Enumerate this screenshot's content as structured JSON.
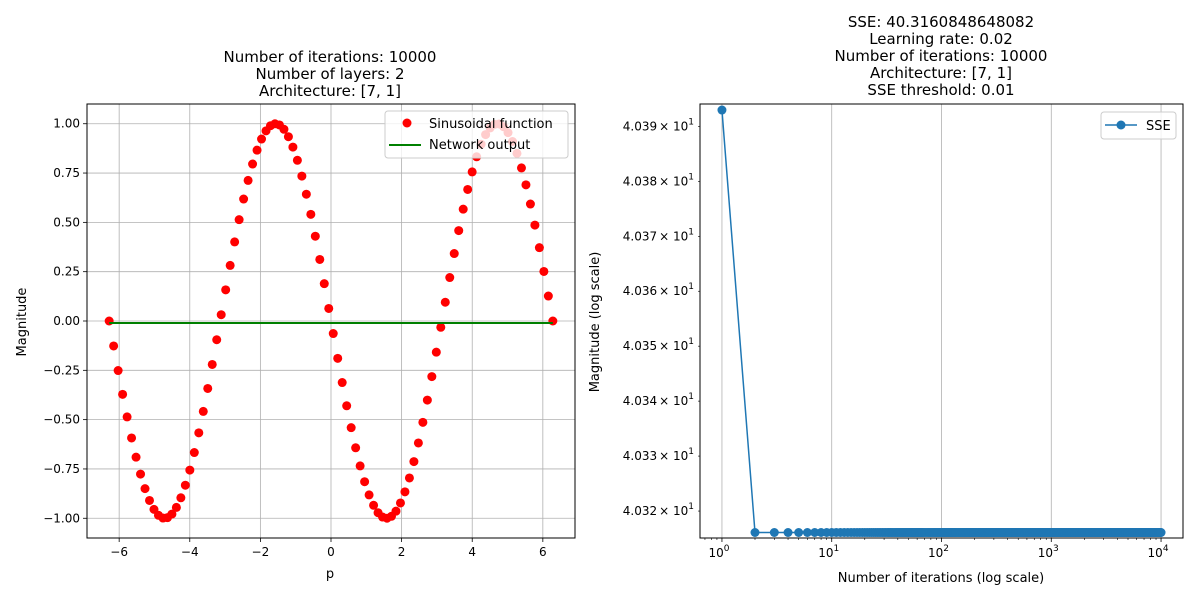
{
  "chart_data": [
    {
      "type": "scatter",
      "title_lines": [
        "Number of iterations: 10000",
        "Number of layers: 2",
        "Architecture: [7, 1]"
      ],
      "xlabel": "p",
      "ylabel": "Magnitude",
      "xlim": [
        -6.911,
        6.911
      ],
      "ylim": [
        -1.1,
        1.1
      ],
      "x_ticks": [
        -6,
        -4,
        -2,
        0,
        2,
        4,
        6
      ],
      "x_tick_labels": [
        "−6",
        "−4",
        "−2",
        "0",
        "2",
        "4",
        "6"
      ],
      "y_ticks": [
        -1.0,
        -0.75,
        -0.5,
        -0.25,
        0.0,
        0.25,
        0.5,
        0.75,
        1.0
      ],
      "y_tick_labels": [
        "−1.00",
        "−0.75",
        "−0.50",
        "−0.25",
        "0.00",
        "0.25",
        "0.50",
        "0.75",
        "1.00"
      ],
      "grid": true,
      "legend_position": "upper right",
      "series": [
        {
          "name": "Sinusoidal function",
          "kind": "scatter",
          "color": "#ff0000",
          "x_range": [
            -6.2832,
            6.2832
          ],
          "n_points": 100,
          "function": "-sin(x)"
        },
        {
          "name": "Network output",
          "kind": "line",
          "color": "#008000",
          "x": [
            -6.2832,
            6.2832
          ],
          "y": [
            -0.01,
            -0.01
          ]
        }
      ]
    },
    {
      "type": "line",
      "title_lines": [
        "SSE: 40.3160848648082",
        "Learning rate: 0.02",
        "Number of iterations: 10000",
        "Architecture: [7, 1]",
        "SSE threshold: 0.01"
      ],
      "xlabel": "Number of iterations (log scale)",
      "ylabel": "Magnitude (log scale)",
      "x_scale": "log",
      "y_scale": "log",
      "xlim": [
        0.631,
        15849
      ],
      "ylim": [
        40.3151,
        40.3941
      ],
      "x_ticks": [
        1,
        10,
        100,
        1000,
        10000
      ],
      "x_tick_bases": [
        "10",
        "10",
        "10",
        "10",
        "10"
      ],
      "x_tick_exponents": [
        "0",
        "1",
        "2",
        "3",
        "4"
      ],
      "y_ticks": [
        40.32,
        40.33,
        40.34,
        40.35,
        40.36,
        40.37,
        40.38,
        40.39
      ],
      "y_tick_mantissas": [
        "4.032",
        "4.033",
        "4.034",
        "4.035",
        "4.036",
        "4.037",
        "4.038",
        "4.039"
      ],
      "y_tick_base": "× 10",
      "y_tick_exponent": "1",
      "grid": "x-only",
      "legend_position": "upper right",
      "series": [
        {
          "name": "SSE",
          "color": "#1f77b4",
          "first_point": [
            1,
            40.393
          ],
          "iterations": [
            1,
            10000
          ],
          "plateau_value": 40.3161
        }
      ]
    }
  ]
}
